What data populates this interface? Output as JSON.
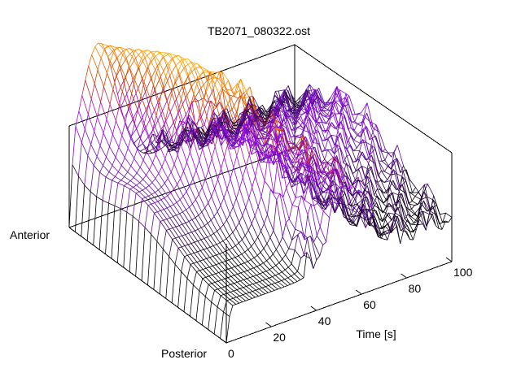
{
  "chart_data": {
    "type": "surface-3d",
    "title": "TB2071_080322.ost",
    "x_axis": {
      "label": "Time [s]",
      "range": [
        0,
        100
      ],
      "ticks": [
        0,
        20,
        40,
        60,
        80,
        100
      ]
    },
    "y_axis": {
      "labels": [
        "Anterior",
        "Posterior"
      ]
    },
    "colormap": [
      "#000000",
      "#6a0dad",
      "#a000ff",
      "#c83200",
      "#ff8c00",
      "#ffff00"
    ]
  }
}
